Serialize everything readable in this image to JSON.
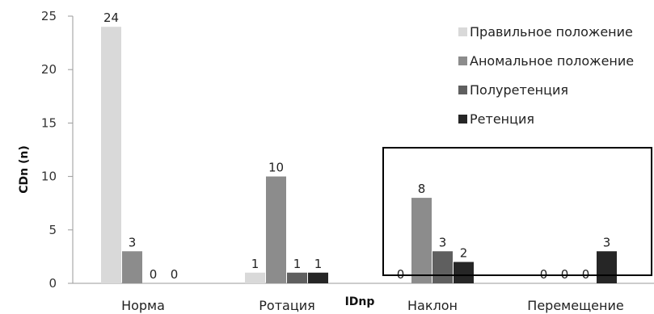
{
  "chart_data": {
    "type": "bar",
    "categories": [
      "Норма",
      "Ротация",
      "Наклон",
      "Перемещение"
    ],
    "series": [
      {
        "name": "Правильное положение",
        "values": [
          24,
          1,
          0,
          0
        ],
        "color": "#d9d9d9"
      },
      {
        "name": "Аномальное положение",
        "values": [
          3,
          10,
          8,
          0
        ],
        "color": "#8c8c8c"
      },
      {
        "name": "Полуретенция",
        "values": [
          0,
          1,
          3,
          0
        ],
        "color": "#5f5f5f"
      },
      {
        "name": "Ретенция",
        "values": [
          0,
          1,
          2,
          3
        ],
        "color": "#262626"
      }
    ],
    "ylabel": "CDn (n)",
    "xlabel": "IDnp",
    "ylim": [
      0,
      25
    ],
    "yticks": [
      0,
      5,
      10,
      15,
      20,
      25
    ],
    "grid": false,
    "legend_position": "top-right",
    "highlight_box": {
      "category": "Наклон",
      "extends_to": "Перемещение"
    }
  }
}
